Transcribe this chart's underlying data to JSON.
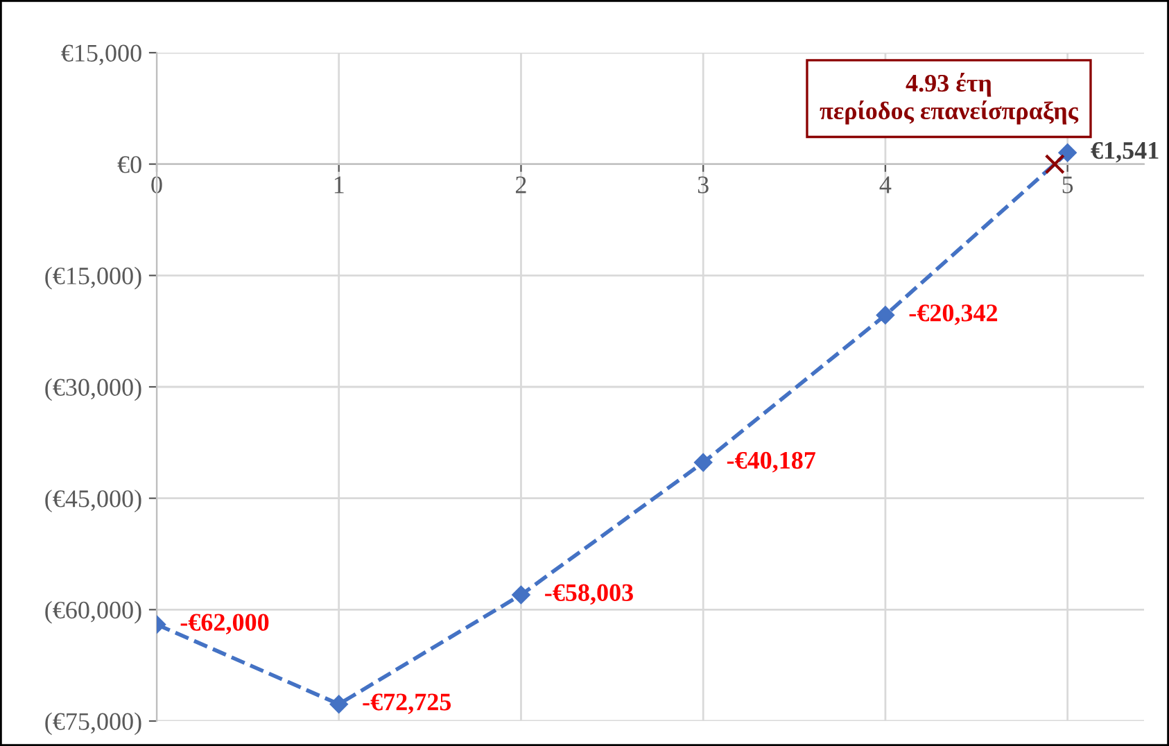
{
  "chart_data": {
    "type": "line",
    "x": [
      0,
      1,
      2,
      3,
      4,
      5
    ],
    "series": [
      {
        "color": "#4472c4",
        "values": [
          -62000,
          -72725,
          -58003,
          -40187,
          -20342,
          1541
        ],
        "value_labels": [
          "-€62,000",
          "-€72,725",
          "-€58,003",
          "-€40,187",
          "-€20,342",
          "€1,541"
        ]
      }
    ],
    "xlim": [
      0,
      5.42
    ],
    "xticks": [
      0,
      1,
      2,
      3,
      4,
      5
    ],
    "ylim": [
      -75000,
      15000
    ],
    "yticks": [
      {
        "value": 15000,
        "label": "€15,000"
      },
      {
        "value": 0,
        "label": "€0"
      },
      {
        "value": -15000,
        "label": "(€15,000)"
      },
      {
        "value": -30000,
        "label": "(€30,000)"
      },
      {
        "value": -45000,
        "label": "(€45,000)"
      },
      {
        "value": -60000,
        "label": "(€60,000)"
      },
      {
        "value": -75000,
        "label": "(€75,000)"
      }
    ],
    "annotations": [
      {
        "text": "4.93 έτη\nπερίοδος επανείσπραξης",
        "x": 4.93,
        "y": 0
      }
    ],
    "grid": true,
    "marker": "diamond",
    "line_style": "dashed"
  }
}
